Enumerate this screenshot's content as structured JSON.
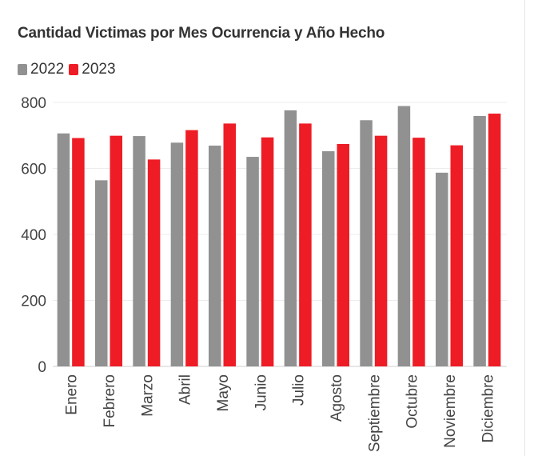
{
  "chart_data": {
    "type": "bar",
    "title": "Cantidad Victimas por Mes Ocurrencia y Año Hecho",
    "categories": [
      "Enero",
      "Febrero",
      "Marzo",
      "Abril",
      "Mayo",
      "Junio",
      "Julio",
      "Agosto",
      "Septiembre",
      "Octubre",
      "Noviembre",
      "Diciembre"
    ],
    "series": [
      {
        "name": "2022",
        "color": "#919191",
        "values": [
          706,
          564,
          698,
          678,
          669,
          635,
          776,
          652,
          746,
          789,
          587,
          759
        ]
      },
      {
        "name": "2023",
        "color": "#ee1c25",
        "values": [
          692,
          699,
          627,
          716,
          736,
          694,
          736,
          674,
          699,
          693,
          670,
          766
        ]
      }
    ],
    "yticks": [
      0,
      200,
      400,
      600,
      800
    ],
    "ylim": [
      0,
      800
    ],
    "xlabel": "",
    "ylabel": "",
    "legend_position": "top-left",
    "grid": true
  }
}
